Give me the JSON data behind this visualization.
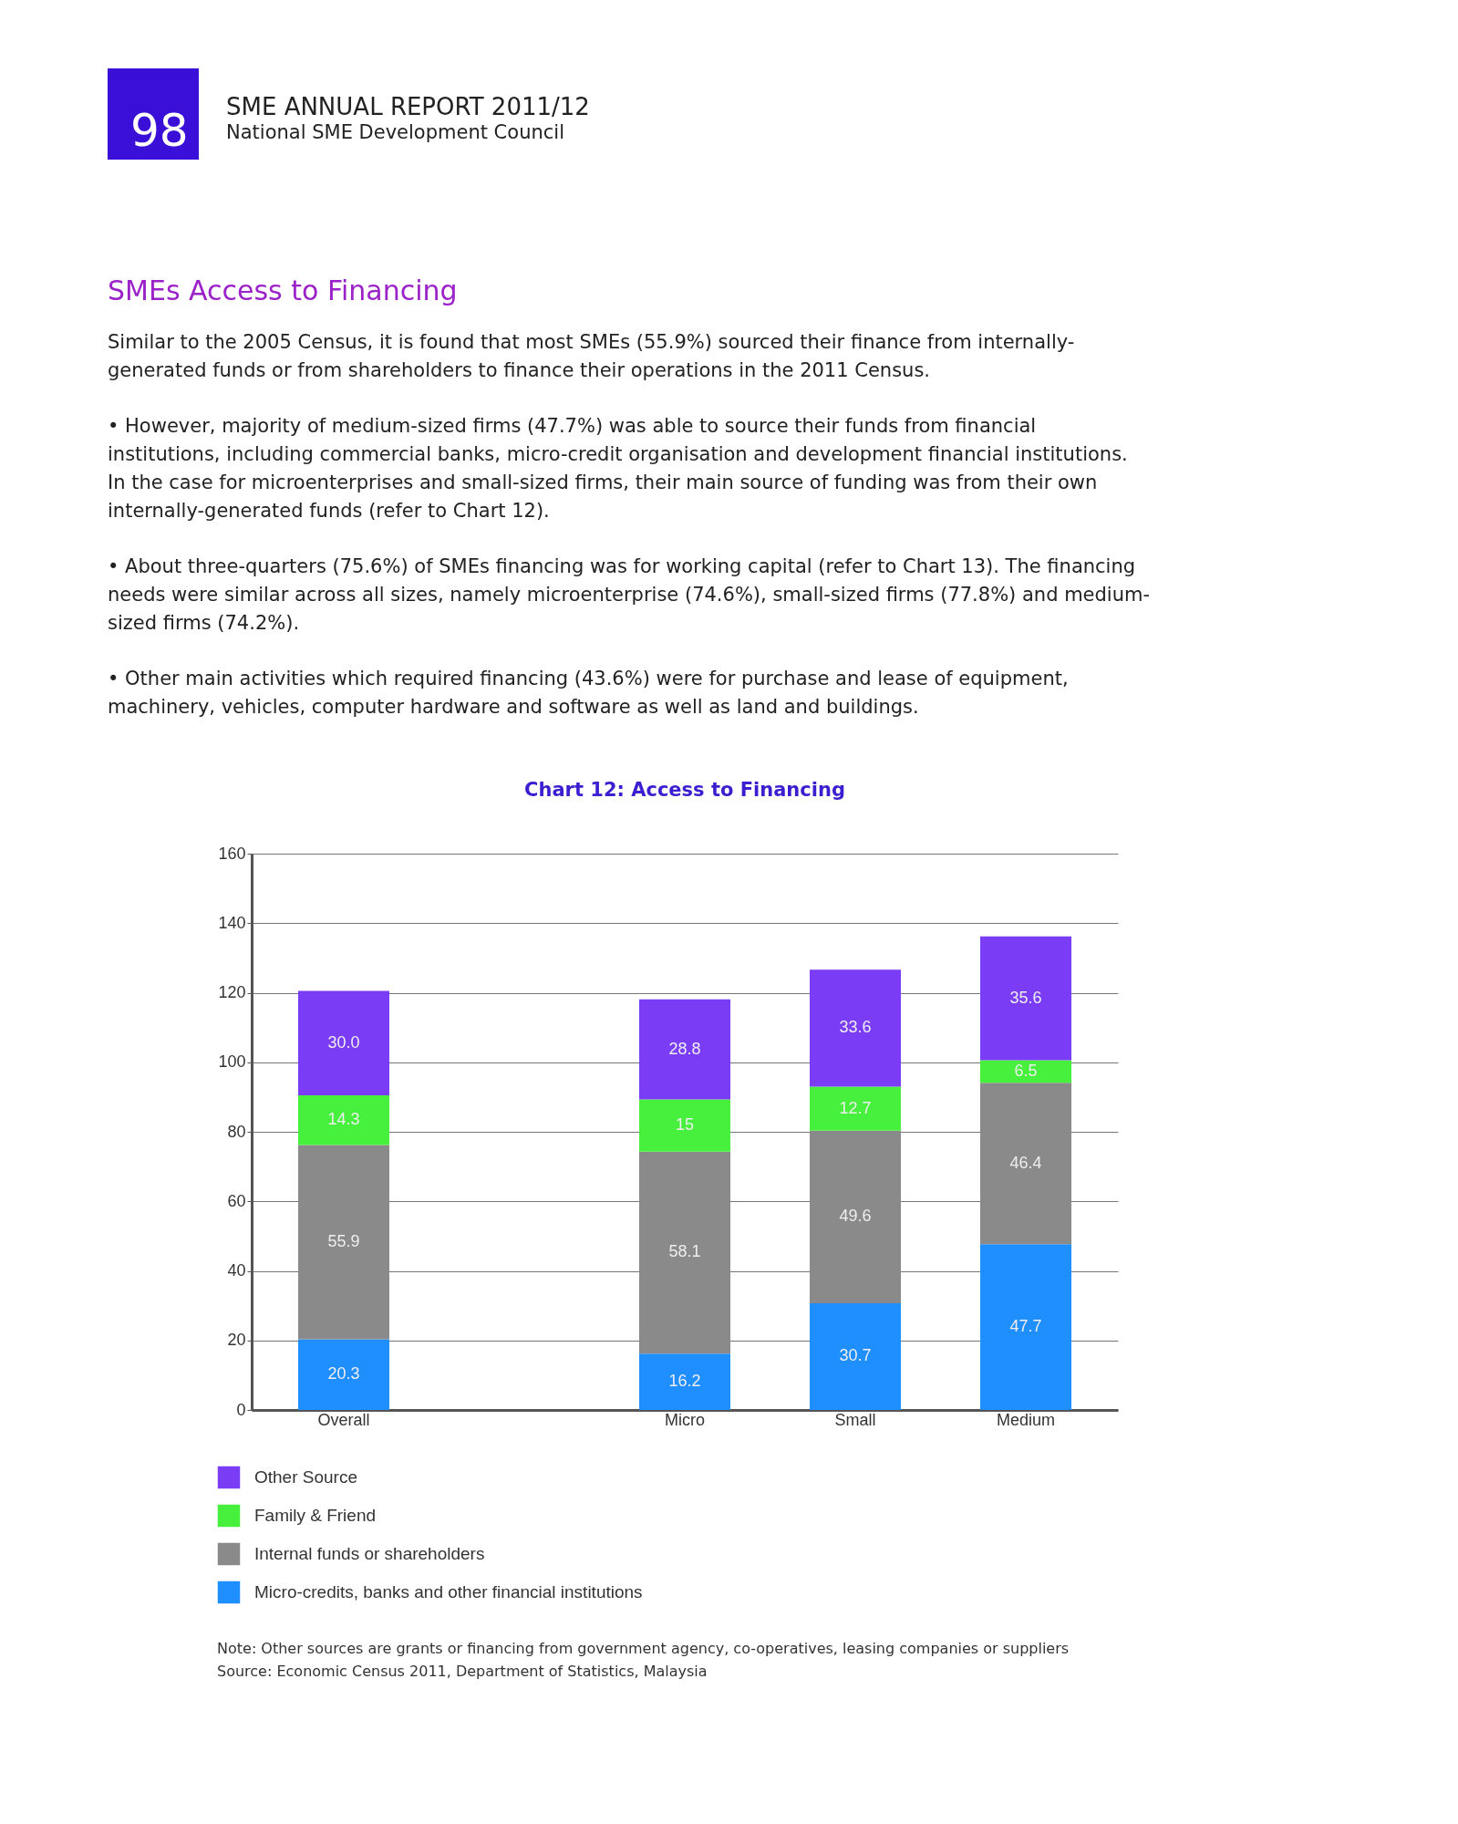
{
  "chart_data": {
    "type": "bar",
    "stacked": true,
    "title": "Chart 12: Access to Financing",
    "categories": [
      "Overall",
      null,
      "Micro",
      "Small",
      "Medium"
    ],
    "series": [
      {
        "name": "Micro-credits, banks and other financial institutions",
        "color": "#1f8fff",
        "values": [
          20.3,
          null,
          16.2,
          30.7,
          47.7
        ],
        "value_labels": [
          "20.3",
          null,
          "16.2",
          "30.7",
          "47.7"
        ]
      },
      {
        "name": "Internal funds or shareholders",
        "color": "#8a8a8a",
        "values": [
          55.9,
          null,
          58.1,
          49.6,
          46.4
        ],
        "value_labels": [
          "55.9",
          null,
          "58.1",
          "49.6",
          "46.4"
        ]
      },
      {
        "name": "Family & Friend",
        "color": "#46f03c",
        "values": [
          14.3,
          null,
          15,
          12.7,
          6.5
        ],
        "value_labels": [
          "14.3",
          null,
          "15",
          "12.7",
          "6.5"
        ]
      },
      {
        "name": "Other Source",
        "color": "#7a3cf5",
        "values": [
          30.0,
          null,
          28.8,
          33.6,
          35.6
        ],
        "value_labels": [
          "30.0",
          null,
          "28.8",
          "33.6",
          "35.6"
        ]
      }
    ],
    "ylim": [
      0,
      160
    ],
    "yticks": [
      0,
      20,
      40,
      60,
      80,
      100,
      120,
      140,
      160
    ],
    "grid": "y",
    "legend": "bottom",
    "annotations": [
      "98",
      "SME ANNUAL REPORT 2011/12",
      "National SME Development Council",
      "SMEs Access to Financing",
      "Similar to the 2005 Census, it is found that most SMEs (55.9%) sourced their finance from internally-generated funds or from shareholders to finance their operations in the 2011 Census.",
      "• However, majority of medium-sized firms (47.7%) was able to source their funds from financial institutions, including commercial banks, micro-credit organisation and development financial institutions. In the case for microenterprises and small-sized firms, their main source of funding was from their own internally-generated funds (refer to Chart 12).",
      "• About three-quarters (75.6%) of SMEs financing was for working capital (refer to Chart 13). The financing needs were similar across all sizes, namely microenterprise (74.6%), small-sized firms (77.8%) and medium-sized firms (74.2%).",
      "• Other main activities which required financing (43.6%) were for purchase and lease of equipment, machinery, vehicles, computer hardware and software as well as land and buildings.",
      "Note: Other sources are grants or financing from government agency, co-operatives, leasing companies or suppliers",
      "Source: Economic Census 2011, Department of Statistics, Malaysia"
    ]
  }
}
